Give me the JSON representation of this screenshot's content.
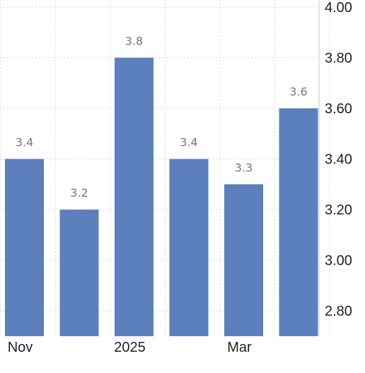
{
  "chart_data": {
    "type": "bar",
    "categories": [
      "Nov",
      "",
      "2025",
      "",
      "Mar",
      ""
    ],
    "values": [
      3.4,
      3.2,
      3.8,
      3.4,
      3.3,
      3.6
    ],
    "data_labels": [
      "3.4",
      "3.2",
      "3.8",
      "3.4",
      "3.3",
      "3.6"
    ],
    "x_tick_labels": [
      "Nov",
      "2025",
      "Mar"
    ],
    "y_ticks": [
      2.8,
      3.0,
      3.2,
      3.4,
      3.6,
      3.8,
      4.0
    ],
    "y_tick_labels": [
      "2.80",
      "3.00",
      "3.20",
      "3.40",
      "3.60",
      "3.80",
      "4.00"
    ],
    "ylim": [
      2.7,
      4.0
    ],
    "y_axis_side": "right",
    "grid": true,
    "colors": {
      "bar": "#5b80bd"
    }
  }
}
